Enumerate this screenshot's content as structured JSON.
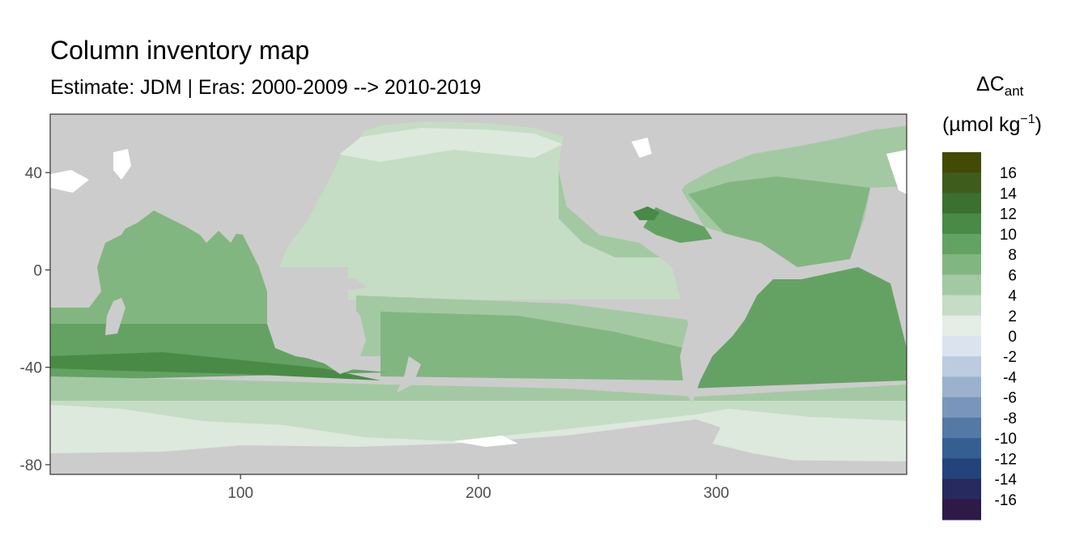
{
  "title": "Column inventory map",
  "subtitle": "Estimate: JDM  | Eras: 2000-2009 --> 2010-2019",
  "legend": {
    "title_line1_main": "ΔC",
    "title_line1_sub": "ant",
    "title_line2_main": "(µmol kg",
    "title_line2_sup": "−1",
    "title_line2_close": ")",
    "bins": [
      {
        "label": "16",
        "color": "#424a05"
      },
      {
        "label": "14",
        "color": "#3e5c1c"
      },
      {
        "label": "12",
        "color": "#3a7030"
      },
      {
        "label": "10",
        "color": "#498a46"
      },
      {
        "label": "8",
        "color": "#64a264"
      },
      {
        "label": "6",
        "color": "#82b681"
      },
      {
        "label": "4",
        "color": "#a3c9a2"
      },
      {
        "label": "2",
        "color": "#c5ddc4"
      },
      {
        "label": "0",
        "color": "#e4ede6"
      },
      {
        "label": "-2",
        "color": "#dbe3ef"
      },
      {
        "label": "-4",
        "color": "#bccbdf"
      },
      {
        "label": "-6",
        "color": "#9bb1cd"
      },
      {
        "label": "-8",
        "color": "#7896bb"
      },
      {
        "label": "-10",
        "color": "#5479a5"
      },
      {
        "label": "-12",
        "color": "#355f92"
      },
      {
        "label": "-14",
        "color": "#23437c"
      },
      {
        "label": "-16",
        "color": "#272a5e"
      },
      {
        "label": "",
        "color": "#2d1a48"
      }
    ]
  },
  "axes": {
    "x_ticks": [
      100,
      200,
      300
    ],
    "x_tick_labels": [
      "100",
      "200",
      "300"
    ],
    "y_ticks": [
      40,
      0,
      -40,
      -80
    ],
    "y_tick_labels": [
      "40",
      "0",
      "-40",
      "-80"
    ],
    "x_range": [
      20,
      380
    ],
    "y_range": [
      -84,
      64
    ]
  },
  "colors": {
    "land": "#cccccc",
    "panel_border": "#333333",
    "missing": "#ffffff"
  }
}
